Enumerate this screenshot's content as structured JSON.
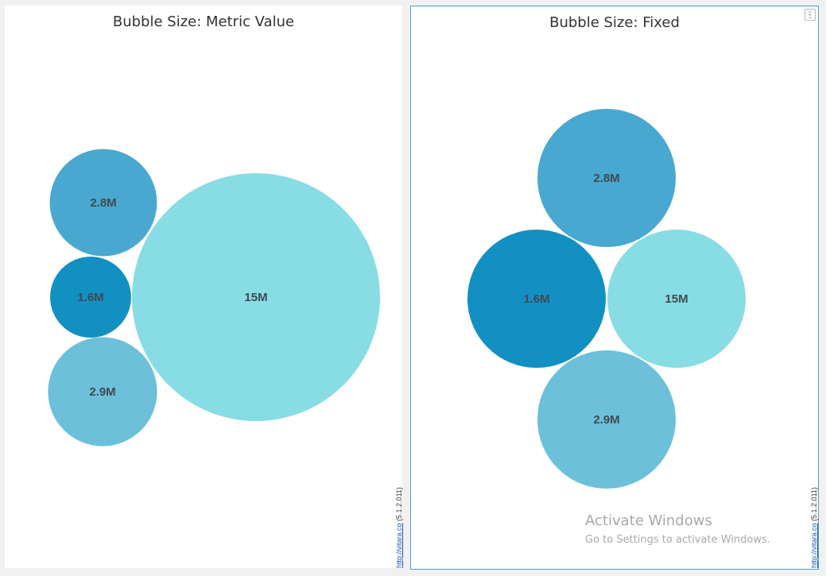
{
  "colors": {
    "bubble_dark": "#1390c2",
    "bubble_mid": "#49a8cf",
    "bubble_light": "#6cc0da",
    "bubble_pale": "#88dce4",
    "label": "#3f4a52",
    "panel_border_active": "#4a9fd8"
  },
  "panels": {
    "left": {
      "title": "Bubble Size: Metric Value",
      "credit_link": "http://vitara.co",
      "credit_version": "(5.1.2.011)"
    },
    "right": {
      "title": "Bubble Size: Fixed",
      "menu_icon": "⋮",
      "credit_link": "http://vitara.co",
      "credit_version": "(5.1.2.011)"
    }
  },
  "watermark": {
    "title": "Activate Windows",
    "subtitle": "Go to Settings to activate Windows."
  },
  "chart_data": [
    {
      "type": "bubble",
      "title": "Bubble Size: Metric Value",
      "size_mode": "metric_value",
      "series": [
        {
          "label": "15M",
          "value": 15000000,
          "color": "#88dce4"
        },
        {
          "label": "2.9M",
          "value": 2900000,
          "color": "#6cc0da"
        },
        {
          "label": "2.8M",
          "value": 2800000,
          "color": "#49a8cf"
        },
        {
          "label": "1.6M",
          "value": 1600000,
          "color": "#1390c2"
        }
      ]
    },
    {
      "type": "bubble",
      "title": "Bubble Size: Fixed",
      "size_mode": "fixed",
      "series": [
        {
          "label": "15M",
          "value": 15000000,
          "color": "#88dce4"
        },
        {
          "label": "2.9M",
          "value": 2900000,
          "color": "#6cc0da"
        },
        {
          "label": "2.8M",
          "value": 2800000,
          "color": "#49a8cf"
        },
        {
          "label": "1.6M",
          "value": 1600000,
          "color": "#1390c2"
        }
      ]
    }
  ]
}
